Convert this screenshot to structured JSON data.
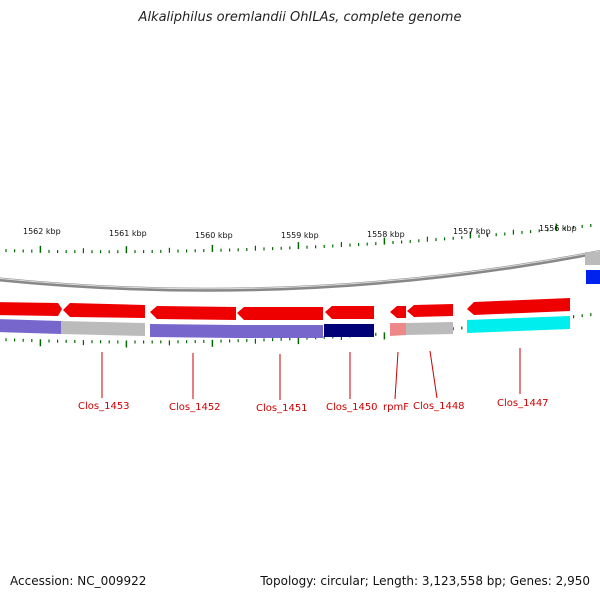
{
  "header": {
    "title": "Alkaliphilus oremlandii OhILAs, complete genome"
  },
  "footer": {
    "accession": "Accession: NC_009922",
    "summary": "Topology: circular; Length: 3,123,558 bp; Genes: 2,950"
  },
  "map": {
    "kbp_labels": [
      "1562 kbp",
      "1561 kbp",
      "1560 kbp",
      "1559 kbp",
      "1558 kbp",
      "1557 kbp",
      "1556 kbp"
    ],
    "gene_labels": [
      "Clos_1453",
      "Clos_1452",
      "Clos_1451",
      "Clos_1450",
      "rpmF",
      "Clos_1448",
      "Clos_1447"
    ],
    "colors": {
      "cds": "#ee0000",
      "track_gray": "#bbbbbb",
      "cog_purple": "#7766cc",
      "cog_navy": "#000077",
      "cog_cyan": "#00eeee",
      "cog_pink": "#ee8888",
      "cog_blue": "#0022ee",
      "tick": "#006600",
      "backbone": "#888888",
      "label": "#cc0000"
    }
  }
}
